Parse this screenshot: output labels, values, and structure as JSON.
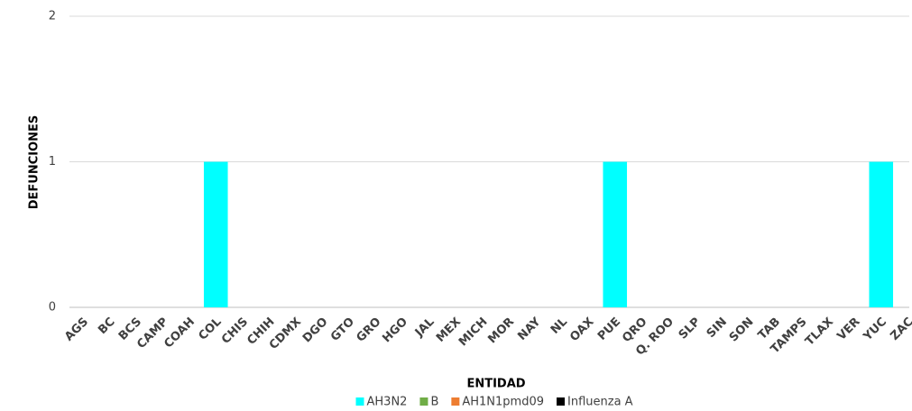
{
  "chart_data": {
    "type": "bar",
    "stacked": true,
    "x_label": "ENTIDAD",
    "y_label": "DEFUNCIONES",
    "categories": [
      "AGS",
      "BC",
      "BCS",
      "CAMP",
      "COAH",
      "COL",
      "CHIS",
      "CHIH",
      "CDMX",
      "DGO",
      "GTO",
      "GRO",
      "HGO",
      "JAL",
      "MEX",
      "MICH",
      "MOR",
      "NAY",
      "NL",
      "OAX",
      "PUE",
      "QRO",
      "Q. ROO",
      "SLP",
      "SIN",
      "SON",
      "TAB",
      "TAMPS",
      "TLAX",
      "VER",
      "YUC",
      "ZAC"
    ],
    "series": [
      {
        "name": "AH3N2",
        "color": "#00ffff",
        "values": [
          0,
          0,
          0,
          0,
          0,
          1,
          0,
          0,
          0,
          0,
          0,
          0,
          0,
          0,
          0,
          0,
          0,
          0,
          0,
          0,
          1,
          0,
          0,
          0,
          0,
          0,
          0,
          0,
          0,
          0,
          1,
          0
        ]
      },
      {
        "name": "B",
        "color": "#70ad47",
        "values": [
          0,
          0,
          0,
          0,
          0,
          0,
          0,
          0,
          0,
          0,
          0,
          0,
          0,
          0,
          0,
          0,
          0,
          0,
          0,
          0,
          0,
          0,
          0,
          0,
          0,
          0,
          0,
          0,
          0,
          0,
          0,
          0
        ]
      },
      {
        "name": "AH1N1pmd09",
        "color": "#ed7d31",
        "values": [
          0,
          0,
          0,
          0,
          0,
          0,
          0,
          0,
          0,
          0,
          0,
          0,
          0,
          0,
          0,
          0,
          0,
          0,
          0,
          0,
          0,
          0,
          0,
          0,
          0,
          0,
          0,
          0,
          0,
          0,
          0,
          0
        ]
      },
      {
        "name": "Influenza A",
        "color": "#000000",
        "values": [
          0,
          0,
          0,
          0,
          0,
          0,
          0,
          0,
          0,
          0,
          0,
          0,
          0,
          0,
          0,
          0,
          0,
          0,
          0,
          0,
          0,
          0,
          0,
          0,
          0,
          0,
          0,
          0,
          0,
          0,
          0,
          0
        ]
      }
    ],
    "ylim": [
      0,
      2
    ],
    "yticks": [
      0,
      1,
      2
    ],
    "grid": true,
    "legend": "bottom"
  }
}
